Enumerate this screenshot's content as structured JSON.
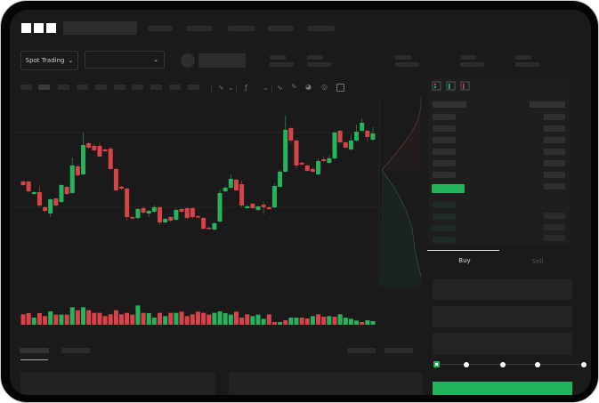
{
  "header": {
    "logo": "OKX"
  },
  "toolbar": {
    "market_button": "Spot Trading",
    "pair_dropdown_value": ""
  },
  "trade": {
    "tabs": [
      "Buy",
      "Sell"
    ],
    "active_tab": "Buy",
    "slider_levels": [
      0,
      25,
      50,
      75,
      100
    ],
    "slider_value": 0
  },
  "colors": {
    "up": "#27b35e",
    "down": "#d8434a",
    "background": "#1a1a1a",
    "accent": "#22b45a"
  },
  "chart": {
    "type": "candlestick",
    "candles": [
      [
        97,
        98,
        92,
        93
      ],
      [
        97,
        98,
        85,
        86
      ],
      [
        83,
        86,
        82,
        85
      ],
      [
        85,
        92,
        68,
        70
      ],
      [
        68,
        69,
        62,
        64
      ],
      [
        61,
        78,
        57,
        77
      ],
      [
        78,
        79,
        69,
        70
      ],
      [
        74,
        94,
        73,
        93
      ],
      [
        91,
        92,
        82,
        83
      ],
      [
        84,
        124,
        83,
        115
      ],
      [
        114,
        116,
        103,
        104
      ],
      [
        105,
        152,
        104,
        138
      ],
      [
        140,
        141,
        134,
        135
      ],
      [
        137,
        139,
        131,
        132
      ],
      [
        137,
        142,
        124,
        125
      ],
      [
        133,
        134,
        130,
        131
      ],
      [
        134,
        136,
        110,
        111
      ],
      [
        111,
        112,
        86,
        87
      ],
      [
        91,
        92,
        87,
        89
      ],
      [
        89,
        90,
        53,
        57
      ],
      [
        57,
        58,
        54,
        56
      ],
      [
        56,
        67,
        55,
        66
      ],
      [
        67,
        69,
        61,
        62
      ],
      [
        61,
        65,
        57,
        64
      ],
      [
        63,
        70,
        62,
        68
      ],
      [
        68,
        69,
        48,
        51
      ],
      [
        51,
        56,
        50,
        55
      ],
      [
        57,
        58,
        51,
        53
      ],
      [
        54,
        67,
        53,
        65
      ],
      [
        66,
        67,
        62,
        63
      ],
      [
        67,
        68,
        54,
        56
      ],
      [
        67,
        68,
        55,
        57
      ],
      [
        58,
        59,
        56,
        57
      ],
      [
        56,
        57,
        43,
        44
      ],
      [
        45,
        46,
        43,
        44
      ],
      [
        43,
        51,
        42,
        50
      ],
      [
        52,
        88,
        51,
        84
      ],
      [
        86,
        92,
        85,
        90
      ],
      [
        90,
        105,
        89,
        100
      ],
      [
        99,
        100,
        86,
        87
      ],
      [
        94,
        98,
        68,
        70
      ],
      [
        67,
        71,
        66,
        69
      ],
      [
        72,
        73,
        66,
        67
      ],
      [
        65,
        70,
        64,
        69
      ],
      [
        71,
        74,
        60,
        68
      ],
      [
        68,
        69,
        65,
        66
      ],
      [
        68,
        95,
        67,
        92
      ],
      [
        91,
        110,
        90,
        108
      ],
      [
        108,
        171,
        107,
        155
      ],
      [
        157,
        158,
        140,
        143
      ],
      [
        143,
        144,
        112,
        115
      ],
      [
        118,
        119,
        115,
        116
      ],
      [
        115,
        116,
        108,
        109
      ],
      [
        111,
        113,
        107,
        108
      ],
      [
        105,
        123,
        104,
        120
      ],
      [
        122,
        125,
        119,
        120
      ],
      [
        118,
        127,
        117,
        123
      ],
      [
        123,
        153,
        122,
        152
      ],
      [
        154,
        155,
        140,
        141
      ],
      [
        141,
        142,
        134,
        135
      ],
      [
        133,
        150,
        132,
        143
      ],
      [
        143,
        161,
        142,
        153
      ],
      [
        154,
        168,
        153,
        163
      ],
      [
        154,
        155,
        142,
        147
      ],
      [
        144,
        158,
        143,
        151
      ]
    ],
    "volumes": [
      35,
      39,
      24,
      39,
      29,
      45,
      34,
      34,
      34,
      59,
      49,
      59,
      49,
      40,
      40,
      29,
      35,
      49,
      35,
      40,
      34,
      65,
      40,
      39,
      24,
      40,
      29,
      40,
      40,
      44,
      29,
      35,
      44,
      40,
      34,
      40,
      45,
      39,
      34,
      44,
      24,
      35,
      29,
      34,
      20,
      35,
      9,
      9,
      15,
      24,
      24,
      24,
      21,
      29,
      35,
      27,
      29,
      27,
      35,
      24,
      20,
      14,
      9,
      15,
      12
    ],
    "volume_colors": [
      "d",
      "d",
      "u",
      "d",
      "d",
      "u",
      "d",
      "u",
      "d",
      "u",
      "d",
      "u",
      "d",
      "d",
      "d",
      "d",
      "d",
      "d",
      "d",
      "d",
      "d",
      "u",
      "d",
      "u",
      "u",
      "d",
      "u",
      "d",
      "u",
      "d",
      "d",
      "d",
      "d",
      "d",
      "d",
      "u",
      "u",
      "u",
      "u",
      "d",
      "d",
      "d",
      "u",
      "u",
      "u",
      "d",
      "d",
      "u",
      "d",
      "u",
      "u",
      "d",
      "d",
      "u",
      "d",
      "d",
      "u",
      "d",
      "u",
      "u",
      "u",
      "u",
      "d",
      "u",
      "u"
    ]
  }
}
